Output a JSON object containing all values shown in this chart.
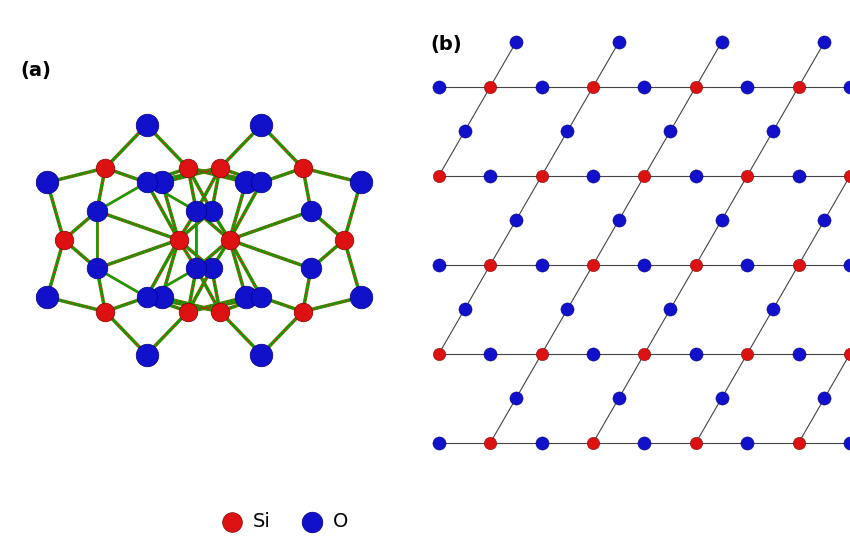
{
  "bg_color": "#ffffff",
  "si_color": "#dd1111",
  "o_color": "#1111cc",
  "bond_colors": [
    "#dd0000",
    "#00aa00",
    "#dddd00",
    "#000000"
  ],
  "label_a": "(a)",
  "label_b": "(b)",
  "legend_si": "Si",
  "legend_o": "O",
  "si_size_a": 180,
  "o_size_a": 220,
  "si_size_b": 80,
  "o_size_b": 90
}
